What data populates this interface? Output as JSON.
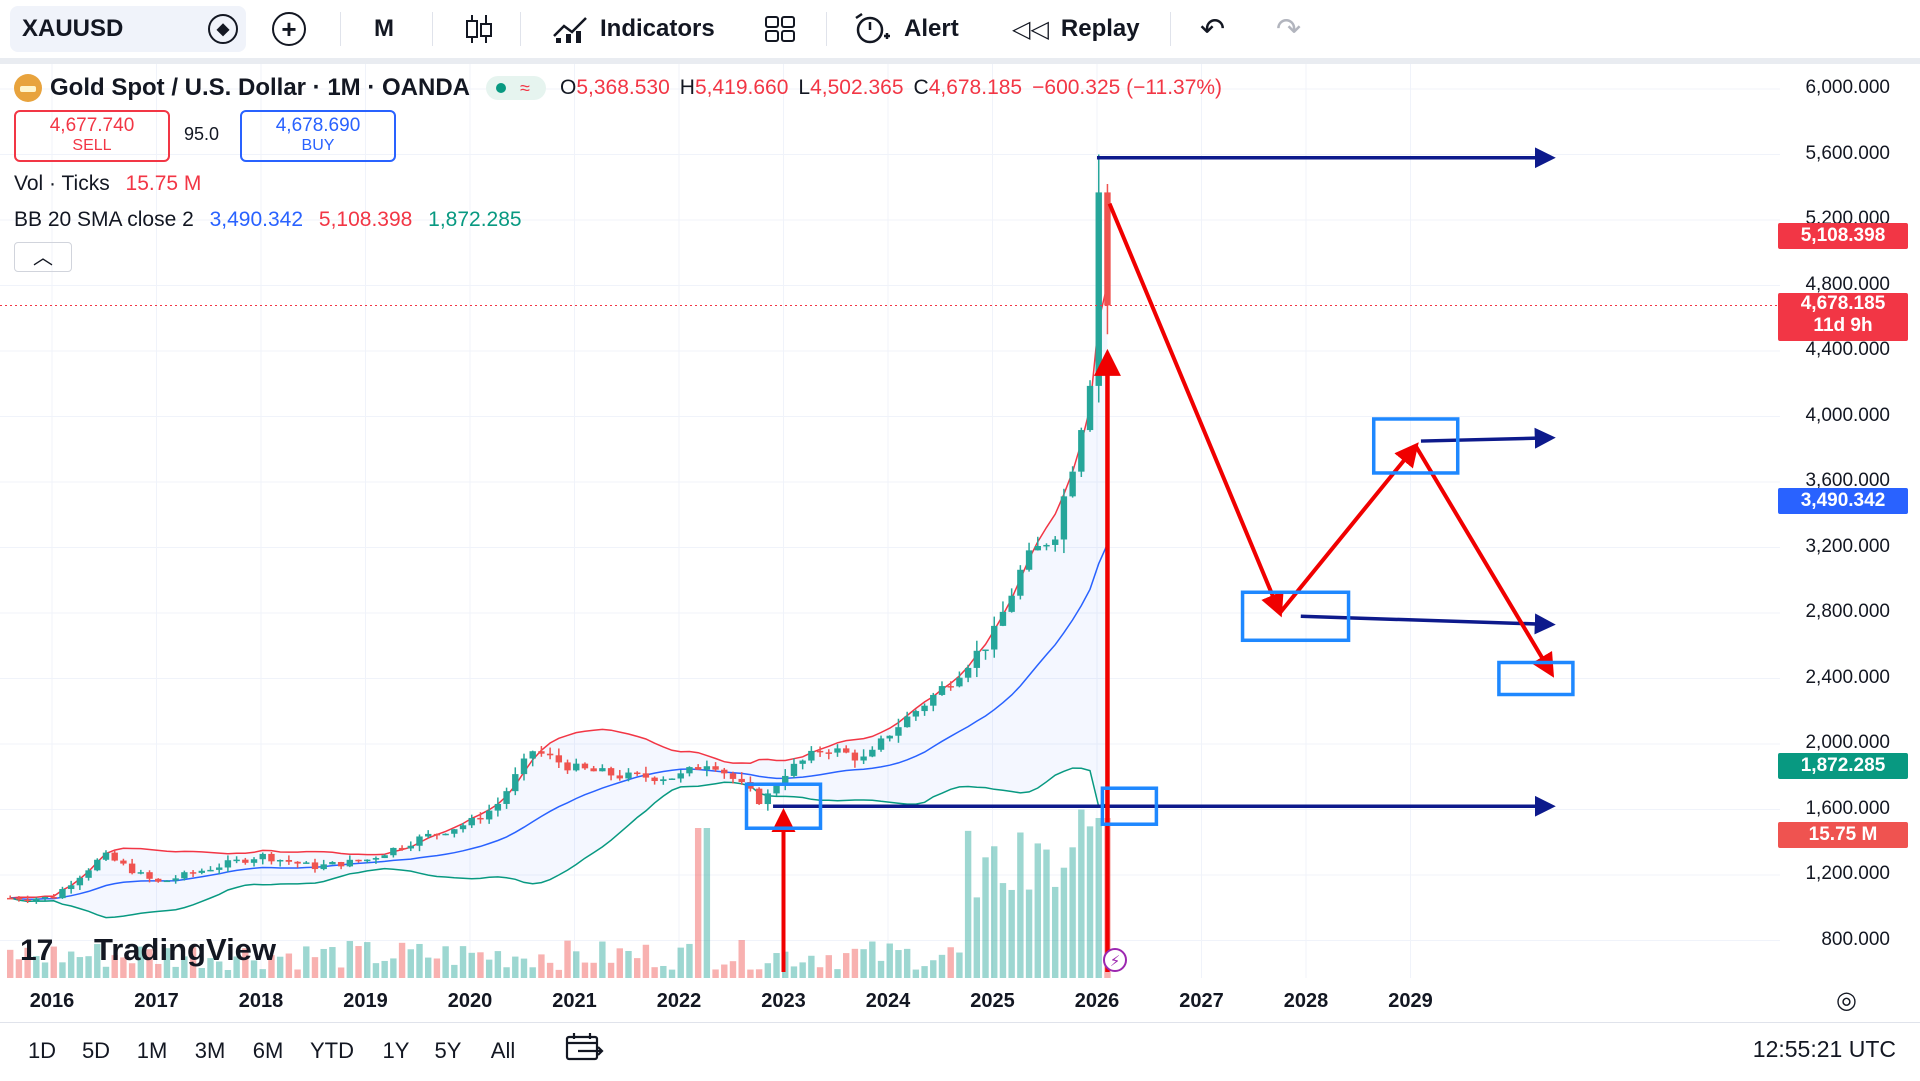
{
  "toolbar": {
    "symbol": "XAUUSD",
    "interval": "M",
    "indicators": "Indicators",
    "alert": "Alert",
    "replay": "Replay"
  },
  "legend": {
    "title": "Gold Spot / U.S. Dollar · 1M · OANDA",
    "o_label": "O",
    "o_value": "5,368.530",
    "h_label": "H",
    "h_value": "5,419.660",
    "l_label": "L",
    "l_value": "4,502.365",
    "c_label": "C",
    "c_value": "4,678.185",
    "change": "−600.325 (−11.37%)",
    "sell_price": "4,677.740",
    "sell_label": "SELL",
    "spread": "95.0",
    "buy_price": "4,678.690",
    "buy_label": "BUY",
    "vol_label": "Vol · Ticks",
    "vol_value": "15.75 M",
    "bb_label": "BB 20 SMA close 2",
    "bb_basis": "3,490.342",
    "bb_upper": "5,108.398",
    "bb_lower": "1,872.285"
  },
  "price_axis": {
    "ticks": [
      "6,000.000",
      "5,600.000",
      "5,200.000",
      "4,800.000",
      "4,400.000",
      "4,000.000",
      "3,600.000",
      "3,200.000",
      "2,800.000",
      "2,400.000",
      "2,000.000",
      "1,600.000",
      "1,200.000",
      "800.000"
    ],
    "bb_upper_label": "5,108.398",
    "last_price_label": "4,678.185",
    "countdown_label": "11d 9h",
    "bb_basis_label": "3,490.342",
    "bb_lower_label": "1,872.285",
    "volume_label": "15.75 M"
  },
  "time_axis": {
    "labels": [
      "2016",
      "2017",
      "2018",
      "2019",
      "2020",
      "2021",
      "2022",
      "2023",
      "2024",
      "2025",
      "2026",
      "2027",
      "2028",
      "2029"
    ]
  },
  "bottom_bar": {
    "ranges": [
      "1D",
      "5D",
      "1M",
      "3M",
      "6M",
      "YTD",
      "1Y",
      "5Y",
      "All"
    ],
    "clock": "12:55:21 UTC"
  },
  "watermark": "TradingView",
  "colors": {
    "up": "#26a69a",
    "down": "#ef5350",
    "bb_upper": "#f23645",
    "bb_basis": "#2962ff",
    "bb_lower": "#089981",
    "drawing_arrow": "#0d1a8c",
    "drawing_red": "#f00000",
    "drawing_box": "#1e88ff"
  },
  "chart_data": {
    "type": "candlestick",
    "title": "Gold Spot / U.S. Dollar · 1M · OANDA",
    "ylim": [
      600,
      6100
    ],
    "x_range": [
      2015.75,
      2030.5
    ],
    "close_series_approx": {
      "x": [
        2016.0,
        2016.5,
        2017.0,
        2017.5,
        2018.0,
        2018.5,
        2019.0,
        2019.5,
        2020.0,
        2020.25,
        2020.6,
        2021.0,
        2021.5,
        2022.0,
        2022.3,
        2022.8,
        2023.0,
        2023.4,
        2023.8,
        2024.0,
        2024.5,
        2025.0,
        2025.3,
        2025.6,
        2025.8,
        2025.95,
        2026.05,
        2026.12
      ],
      "y": [
        1060,
        1320,
        1150,
        1240,
        1320,
        1250,
        1290,
        1420,
        1520,
        1620,
        1960,
        1850,
        1800,
        1800,
        1900,
        1640,
        1820,
        1980,
        1900,
        2060,
        2330,
        2650,
        3100,
        3300,
        3800,
        4300,
        5300,
        4678
      ]
    },
    "bollinger_bands": {
      "upper_last": 5108.398,
      "basis_last": 3490.342,
      "lower_last": 1872.285
    },
    "volume_last": "15.75 M",
    "drawings": {
      "horizontal_rays": [
        5580,
        3850,
        2780,
        1620
      ],
      "projection_path": {
        "x": [
          2026.12,
          2027.75,
          2029.05,
          2030.35
        ],
        "y": [
          5300,
          2800,
          3820,
          2430
        ]
      }
    }
  }
}
